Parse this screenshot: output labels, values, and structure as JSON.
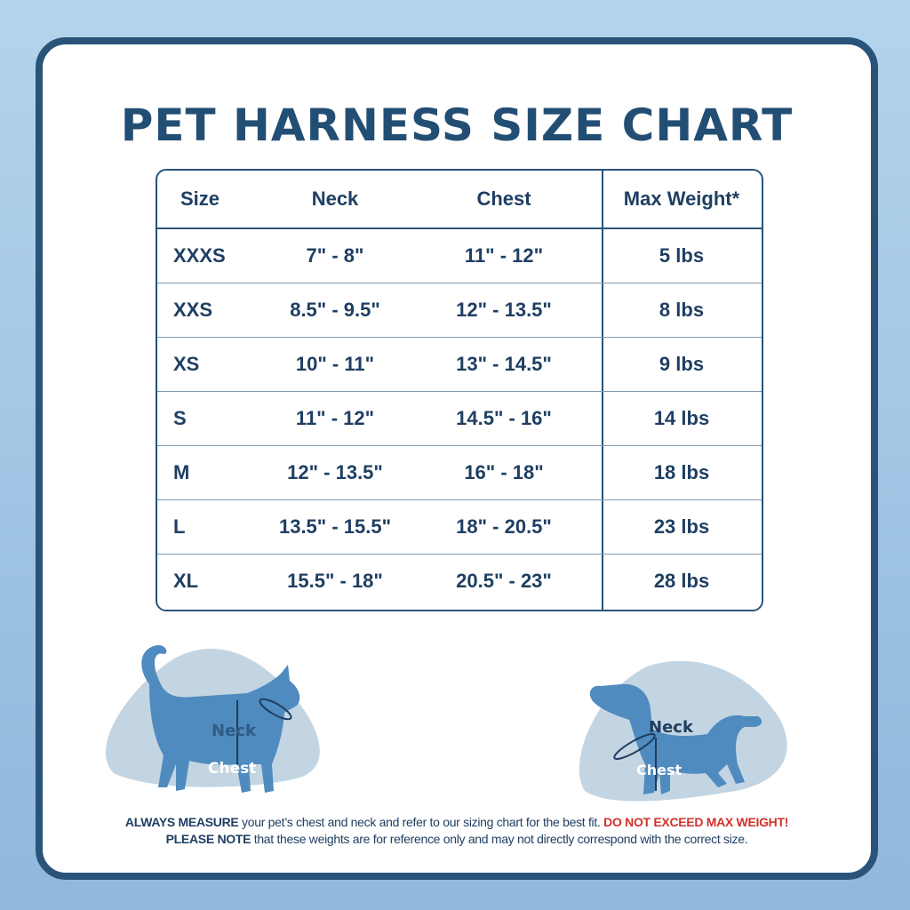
{
  "title": "PET HARNESS SIZE CHART",
  "table": {
    "headers": [
      "Size",
      "Neck",
      "Chest",
      "Max Weight*"
    ],
    "rows": [
      [
        "XXXS",
        "7\" - 8\"",
        "11\" - 12\"",
        "5 lbs"
      ],
      [
        "XXS",
        "8.5\" - 9.5\"",
        "12\" - 13.5\"",
        "8 lbs"
      ],
      [
        "XS",
        "10\" - 11\"",
        "13\" - 14.5\"",
        "9 lbs"
      ],
      [
        "S",
        "11\" - 12\"",
        "14.5\" - 16\"",
        "14 lbs"
      ],
      [
        "M",
        "12\" - 13.5\"",
        "16\" - 18\"",
        "18 lbs"
      ],
      [
        "L",
        "13.5\" - 15.5\"",
        "18\" - 20.5\"",
        "23 lbs"
      ],
      [
        "XL",
        "15.5\" - 18\"",
        "20.5\" - 23\"",
        "28 lbs"
      ]
    ]
  },
  "illustrations": {
    "cat": {
      "neck_label": "Neck",
      "chest_label": "Chest"
    },
    "dog": {
      "neck_label": "Neck",
      "chest_label": "Chest"
    }
  },
  "footer": {
    "line1_bold": "ALWAYS MEASURE",
    "line1_text": " your pet’s chest and neck and refer  to our sizing chart for the best fit. ",
    "line1_warning": "DO NOT EXCEED MAX WEIGHT!",
    "line2_bold": "PLEASE NOTE",
    "line2_text": " that these weights are for reference only and may not directly correspond with the correct size."
  },
  "colors": {
    "primary": "#234e74",
    "warning": "#d0322c",
    "silhouette": "#4f8bbf",
    "blob": "#c3d5e2"
  }
}
